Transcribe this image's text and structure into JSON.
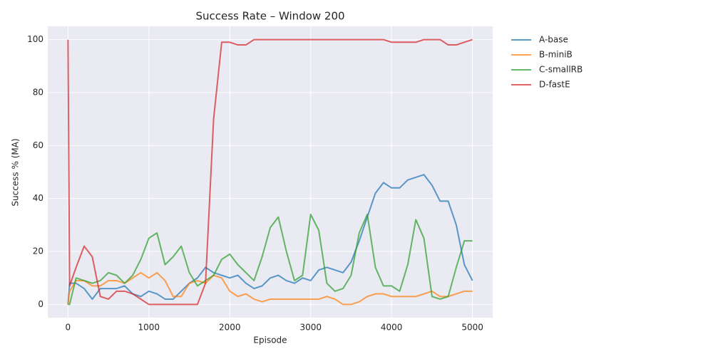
{
  "chart_data": {
    "type": "line",
    "title": "Success Rate – Window 200",
    "x_label": "Episode",
    "y_label": "Success % (MA)",
    "x": [
      0,
      20,
      100,
      200,
      300,
      400,
      500,
      600,
      700,
      800,
      900,
      1000,
      1100,
      1200,
      1300,
      1400,
      1500,
      1600,
      1700,
      1800,
      1900,
      2000,
      2100,
      2200,
      2300,
      2400,
      2500,
      2600,
      2700,
      2800,
      2900,
      3000,
      3100,
      3200,
      3300,
      3400,
      3500,
      3600,
      3700,
      3800,
      3900,
      4000,
      4100,
      4200,
      4300,
      4400,
      4500,
      4600,
      4700,
      4800,
      4900,
      5000
    ],
    "series": [
      {
        "name": "A-base",
        "color": "#1f77b4",
        "values": [
          0,
          8,
          8,
          6,
          2,
          6,
          6,
          6,
          7,
          4,
          3,
          5,
          4,
          2,
          2,
          5,
          8,
          10,
          14,
          12,
          11,
          10,
          11,
          8,
          6,
          7,
          10,
          11,
          9,
          8,
          10,
          9,
          13,
          14,
          13,
          12,
          16,
          24,
          33,
          42,
          46,
          44,
          44,
          47,
          48,
          49,
          45,
          39,
          39,
          30,
          15,
          9
        ]
      },
      {
        "name": "B-miniB",
        "color": "#ff7f0e",
        "values": [
          0,
          5,
          9,
          9,
          7,
          7,
          9,
          9,
          8,
          10,
          12,
          10,
          12,
          9,
          3,
          3,
          8,
          9,
          8,
          11,
          10,
          5,
          3,
          4,
          2,
          1,
          2,
          2,
          2,
          2,
          2,
          2,
          2,
          3,
          2,
          0,
          0,
          1,
          3,
          4,
          4,
          3,
          3,
          3,
          3,
          4,
          5,
          3,
          3,
          4,
          5,
          5
        ]
      },
      {
        "name": "C-smallRB",
        "color": "#2ca02c",
        "values": [
          0,
          0,
          10,
          9,
          8,
          9,
          12,
          11,
          8,
          11,
          17,
          25,
          27,
          15,
          18,
          22,
          12,
          7,
          9,
          11,
          17,
          19,
          15,
          12,
          9,
          18,
          29,
          33,
          20,
          9,
          11,
          34,
          28,
          8,
          5,
          6,
          11,
          27,
          34,
          14,
          7,
          7,
          5,
          15,
          32,
          25,
          3,
          2,
          3,
          14,
          24,
          24
        ]
      },
      {
        "name": "D-fastE",
        "color": "#d62728",
        "values": [
          100,
          7,
          14,
          22,
          18,
          3,
          2,
          5,
          5,
          4,
          2,
          0,
          0,
          0,
          0,
          0,
          0,
          0,
          8,
          70,
          99,
          99,
          98,
          98,
          100,
          100,
          100,
          100,
          100,
          100,
          100,
          100,
          100,
          100,
          100,
          100,
          100,
          100,
          100,
          100,
          100,
          99,
          99,
          99,
          99,
          100,
          100,
          100,
          98,
          98,
          99,
          100
        ]
      }
    ],
    "xlim": [
      -250,
      5250
    ],
    "ylim": [
      -5,
      105
    ],
    "xticks": [
      0,
      1000,
      2000,
      3000,
      4000,
      5000
    ],
    "yticks": [
      0,
      20,
      40,
      60,
      80,
      100
    ],
    "grid": true
  }
}
